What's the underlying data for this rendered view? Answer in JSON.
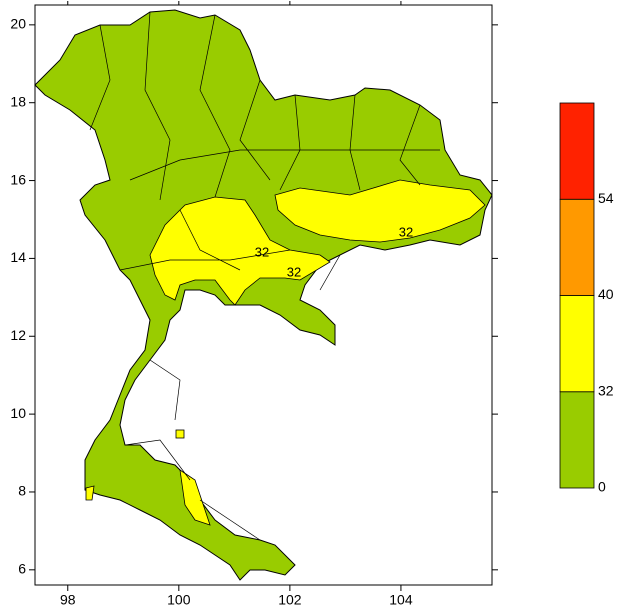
{
  "map": {
    "xlim": [
      97.41,
      105.64
    ],
    "ylim": [
      5.61,
      20.51
    ],
    "xticks": [
      98,
      100,
      102,
      104
    ],
    "yticks": [
      6,
      8,
      10,
      12,
      14,
      16,
      18,
      20
    ],
    "contour_labels": [
      32,
      32,
      32
    ],
    "colorbar": {
      "levels": [
        0,
        32,
        40,
        54
      ],
      "colors": [
        "#99cc00",
        "#ffff00",
        "#ff9900",
        "#ff2200"
      ]
    }
  }
}
